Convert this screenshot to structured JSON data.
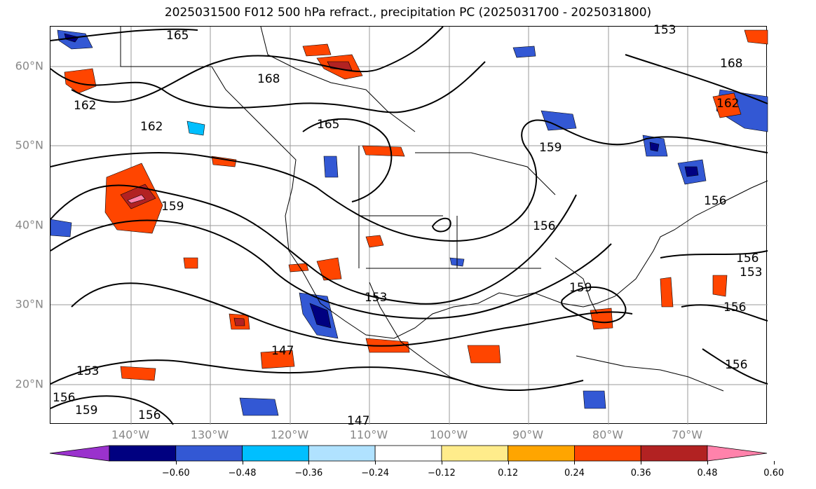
{
  "title": "2025031500 F012 500 hPa refract., precipitation PC (2025031700 - 2025031800)",
  "latitude_labels": [
    "60°N",
    "50°N",
    "40°N",
    "30°N",
    "20°N"
  ],
  "longitude_labels": [
    "140°W",
    "130°W",
    "120°W",
    "110°W",
    "100°W",
    "90°W",
    "80°W",
    "70°W"
  ],
  "contour_labels": [
    "165",
    "168",
    "162",
    "162",
    "165",
    "159",
    "159",
    "156",
    "156",
    "156",
    "153",
    "153",
    "156",
    "159",
    "147",
    "153",
    "156",
    "159",
    "156",
    "147",
    "156",
    "168",
    "162",
    "153"
  ],
  "colorbar": {
    "ticks": [
      "−0.60",
      "−0.48",
      "−0.36",
      "−0.24",
      "−0.12",
      "0.12",
      "0.24",
      "0.36",
      "0.48",
      "0.60"
    ],
    "colors": [
      "#9a32cd",
      "#000080",
      "#3358d4",
      "#00bfff",
      "#b0e2ff",
      "#ffffff",
      "#ffec8b",
      "#ffa500",
      "#ff4500",
      "#b22222",
      "#ff82ab"
    ]
  },
  "colors": {
    "gridline": "#888888",
    "axis_label": "#888888",
    "contour": "#000000"
  }
}
